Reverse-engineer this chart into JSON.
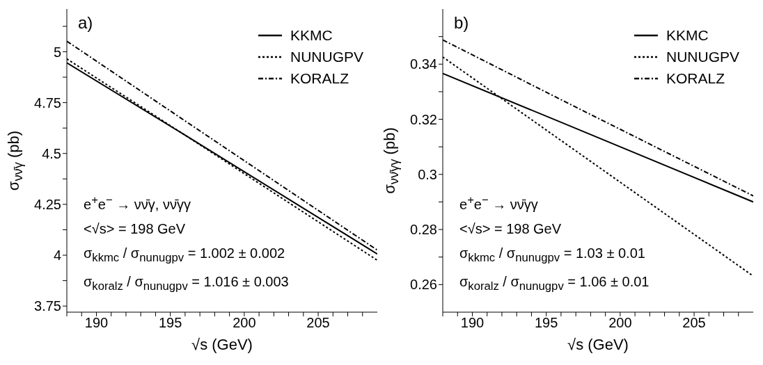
{
  "chart_data": [
    {
      "type": "line",
      "title": "a)",
      "xlabel": "√s (GeV)",
      "ylabel": "σ$_{νν̄γ}$ (pb)",
      "xlim": [
        188,
        209
      ],
      "xticks": [
        {
          "value": 188,
          "label": null
        },
        {
          "value": 189,
          "label": null
        },
        190,
        {
          "value": 191,
          "label": null
        },
        {
          "value": 192,
          "label": null
        },
        {
          "value": 193,
          "label": null
        },
        {
          "value": 194,
          "label": null
        },
        195,
        {
          "value": 196,
          "label": null
        },
        {
          "value": 197,
          "label": null
        },
        {
          "value": 198,
          "label": null
        },
        {
          "value": 199,
          "label": null
        },
        200,
        {
          "value": 201,
          "label": null
        },
        {
          "value": 202,
          "label": null
        },
        {
          "value": 203,
          "label": null
        },
        {
          "value": 204,
          "label": null
        },
        205,
        {
          "value": 206,
          "label": null
        },
        {
          "value": 207,
          "label": null
        },
        {
          "value": 208,
          "label": null
        }
      ],
      "ylim": [
        3.72,
        5.21
      ],
      "yticks": [
        3.75,
        {
          "value": 3.875,
          "label": null
        },
        4,
        {
          "value": 4.125,
          "label": null
        },
        4.25,
        {
          "value": 4.375,
          "label": null
        },
        4.5,
        {
          "value": 4.625,
          "label": null
        },
        4.75,
        {
          "value": 4.875,
          "label": null
        },
        5,
        {
          "value": 5.125,
          "label": null
        }
      ],
      "grid": false,
      "legend": "top right",
      "marker": "none",
      "x": [
        188,
        196,
        209
      ],
      "series": [
        {
          "name": "KKMC",
          "color": "#000000",
          "line_style": "solid",
          "values": [
            4.946,
            4.59,
            4.006
          ]
        },
        {
          "name": "NUNUGPV",
          "color": "#000000",
          "line_style": "dotted",
          "values": [
            4.965,
            4.59,
            3.975
          ]
        },
        {
          "name": "KORALZ",
          "color": "#000000",
          "line_style": "dashdot",
          "values": [
            5.052,
            4.66,
            4.025
          ]
        }
      ],
      "annotations": [
        "e$^{+}$e$^{−}$ → νν̄γ, νν̄γγ",
        "<√s> = 198 GeV",
        "σ$_{kkmc}$ / σ$_{nunugpv}$ = 1.002 ± 0.002",
        "σ$_{koralz}$ / σ$_{nunugpv}$ = 1.016 ± 0.003"
      ]
    },
    {
      "type": "line",
      "title": "b)",
      "xlabel": "√s (GeV)",
      "ylabel": "σ$_{νν̄γγ}$ (pb)",
      "xlim": [
        188,
        209
      ],
      "xticks": [
        {
          "value": 188,
          "label": null
        },
        {
          "value": 189,
          "label": null
        },
        190,
        {
          "value": 191,
          "label": null
        },
        {
          "value": 192,
          "label": null
        },
        {
          "value": 193,
          "label": null
        },
        {
          "value": 194,
          "label": null
        },
        195,
        {
          "value": 196,
          "label": null
        },
        {
          "value": 197,
          "label": null
        },
        {
          "value": 198,
          "label": null
        },
        {
          "value": 199,
          "label": null
        },
        200,
        {
          "value": 201,
          "label": null
        },
        {
          "value": 202,
          "label": null
        },
        {
          "value": 203,
          "label": null
        },
        {
          "value": 204,
          "label": null
        },
        205,
        {
          "value": 206,
          "label": null
        },
        {
          "value": 207,
          "label": null
        },
        {
          "value": 208,
          "label": null
        }
      ],
      "ylim": [
        0.25,
        0.36
      ],
      "yticks": [
        0.26,
        {
          "value": 0.27,
          "label": null
        },
        0.28,
        {
          "value": 0.29,
          "label": null
        },
        {
          "value": 0.3,
          "label": "0.3"
        },
        {
          "value": 0.31,
          "label": null
        },
        0.32,
        {
          "value": 0.33,
          "label": null
        },
        0.34,
        {
          "value": 0.35,
          "label": null
        }
      ],
      "grid": false,
      "legend": "top right",
      "marker": "none",
      "x": [
        188,
        196,
        209
      ],
      "series": [
        {
          "name": "KKMC",
          "color": "#000000",
          "line_style": "solid",
          "values": [
            0.3366,
            0.3189,
            0.29
          ]
        },
        {
          "name": "NUNUGPV",
          "color": "#000000",
          "line_style": "dotted",
          "values": [
            0.3426,
            0.3123,
            0.2631
          ]
        },
        {
          "name": "KORALZ",
          "color": "#000000",
          "line_style": "dashdot",
          "values": [
            0.3488,
            0.3271,
            0.2922
          ]
        }
      ],
      "annotations": [
        "e$^{+}$e$^{−}$ → νν̄γγ",
        "<√s> = 198 GeV",
        "σ$_{kkmc}$ / σ$_{nunugpv}$ = 1.03 ± 0.01",
        "σ$_{koralz}$ / σ$_{nunugpv}$ = 1.06 ± 0.01"
      ]
    }
  ]
}
